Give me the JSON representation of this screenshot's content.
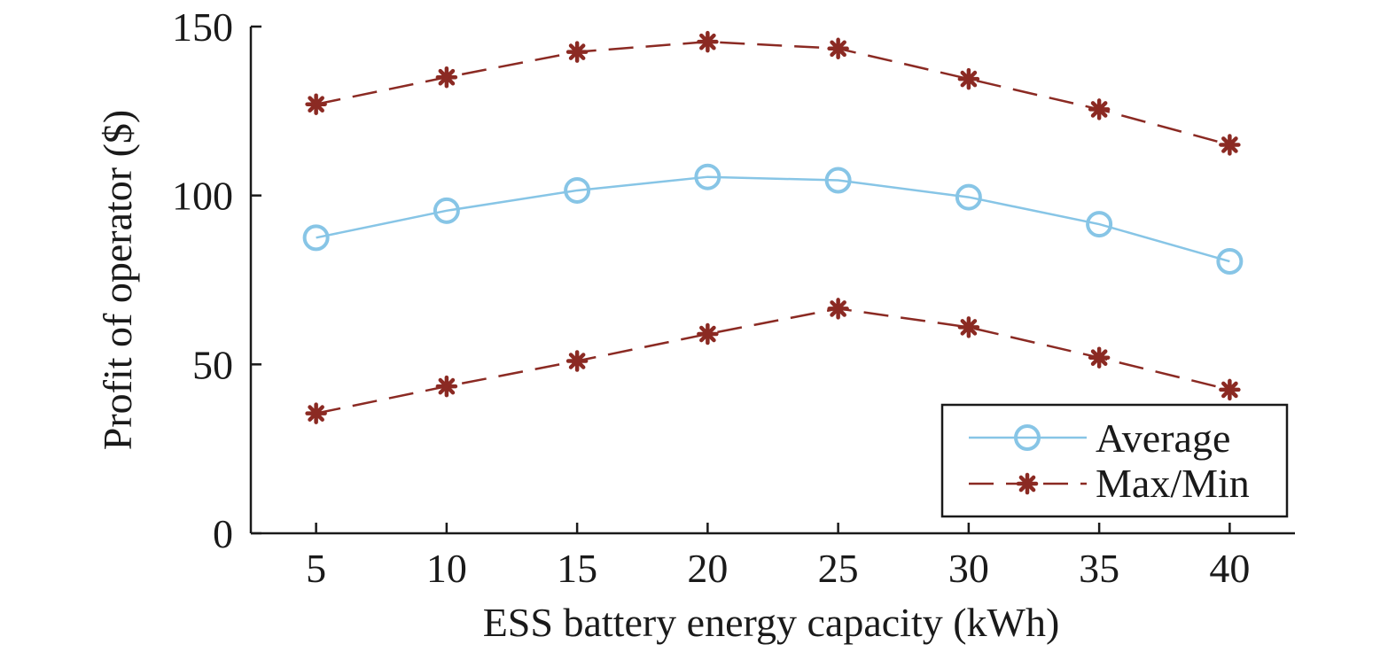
{
  "chart_data": {
    "type": "line",
    "title": "",
    "xlabel": "ESS battery energy capacity (kWh)",
    "ylabel": "Profit of operator ($)",
    "x": [
      5,
      10,
      15,
      20,
      25,
      30,
      35,
      40
    ],
    "xticks": [
      "5",
      "10",
      "15",
      "20",
      "25",
      "30",
      "35",
      "40"
    ],
    "yticks": [
      "0",
      "50",
      "100",
      "150"
    ],
    "xlim": [
      2.5,
      42.5
    ],
    "ylim": [
      0,
      150
    ],
    "grid": false,
    "legend_position": "bottom-right",
    "series": [
      {
        "name": "Average",
        "values": [
          87.5,
          95.5,
          101.5,
          105.5,
          104.5,
          99.5,
          91.5,
          80.5
        ],
        "color": "#87c5e6",
        "marker": "circle-icon",
        "line_style": "solid"
      },
      {
        "name": "Max/Min",
        "max_values": [
          127,
          135,
          142.5,
          145.5,
          143.5,
          134.5,
          125.5,
          115
        ],
        "min_values": [
          35.5,
          43.5,
          51,
          59,
          66.5,
          61,
          52,
          42.5
        ],
        "color": "#8b2a23",
        "marker": "asterisk-icon",
        "line_style": "dashed"
      }
    ]
  }
}
